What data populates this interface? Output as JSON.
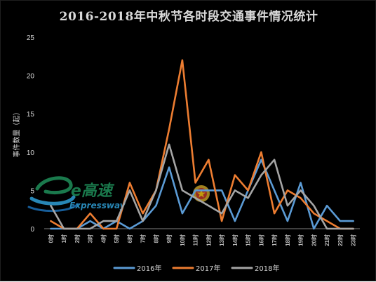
{
  "chart_data": {
    "type": "line",
    "title": "2016-2018年中秋节各时段交通事件情况统计",
    "ylabel": "事件数量（起）",
    "xlabel": "",
    "ylim": [
      0,
      25
    ],
    "yticks": [
      0,
      5,
      10,
      15,
      20,
      25
    ],
    "grid": false,
    "legend_position": "bottom",
    "categories": [
      "0时",
      "1时",
      "2时",
      "3时",
      "4时",
      "5时",
      "6时",
      "7时",
      "8时",
      "9时",
      "10时",
      "11时",
      "12时",
      "13时",
      "14时",
      "15时",
      "16时",
      "17时",
      "18时",
      "19时",
      "20时",
      "21时",
      "22时",
      "23时"
    ],
    "series": [
      {
        "name": "2016年",
        "color": "#5b9bd5",
        "values": [
          0,
          0,
          0,
          1,
          0,
          1,
          0,
          1,
          3,
          8,
          2,
          5,
          5,
          5,
          1,
          5,
          9,
          5,
          1,
          6,
          0,
          3,
          1,
          1
        ]
      },
      {
        "name": "2017年",
        "color": "#ed7d31",
        "values": [
          1,
          0,
          0,
          2,
          0,
          0,
          6,
          2,
          5,
          13,
          22,
          6,
          9,
          1,
          7,
          5,
          10,
          2,
          5,
          4,
          2,
          1,
          0,
          0
        ]
      },
      {
        "name": "2018年",
        "color": "#a5a5a5",
        "values": [
          3,
          0,
          0,
          0,
          1,
          1,
          5,
          1,
          5,
          11,
          5,
          4,
          3,
          2,
          5,
          4,
          7,
          9,
          3,
          5,
          3,
          0,
          0,
          0
        ]
      }
    ]
  },
  "watermark": {
    "logo_text": "e高速",
    "logo_subtext": "Expressway"
  }
}
